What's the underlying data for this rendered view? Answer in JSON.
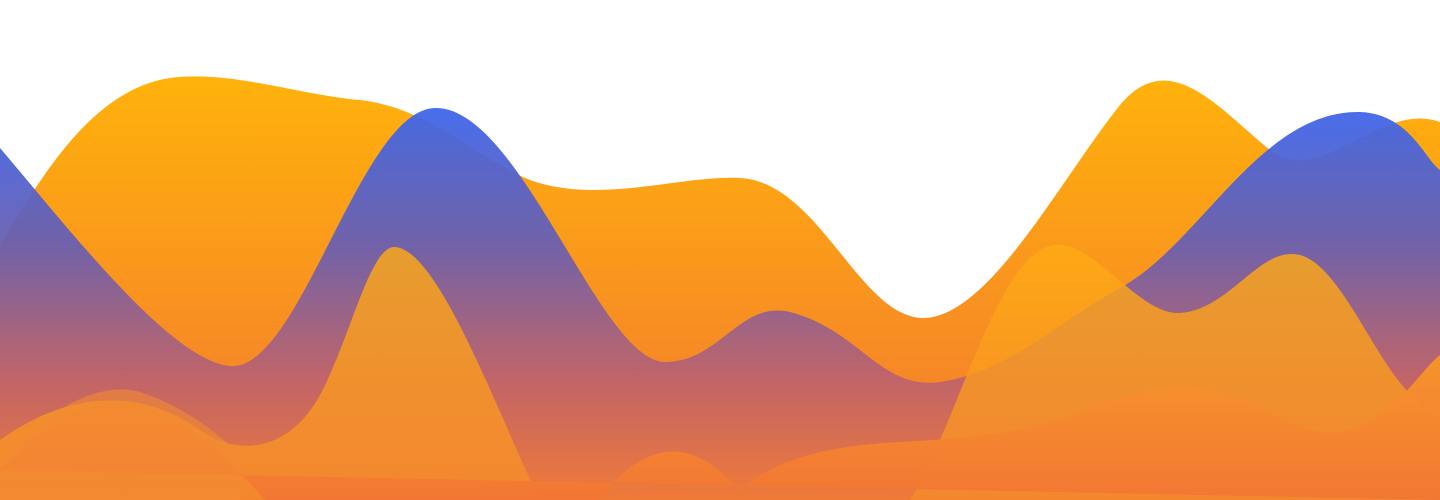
{
  "palette": {
    "background": "#ffffff",
    "orange_light": "#ffb20b",
    "orange_deep": "#f37632",
    "blue": "#3e66ea",
    "blue_bottom": "#f48e2b",
    "amber_overlay": "#ffab13"
  },
  "layers": [
    {
      "name": "back-orange-wave",
      "fill": "orange-gradient"
    },
    {
      "name": "blue-wave",
      "fill": "blue-gradient"
    },
    {
      "name": "amber-wave",
      "fill": "amber-gradient"
    },
    {
      "name": "front-orange-wave",
      "fill": "orange-front-gradient"
    }
  ]
}
